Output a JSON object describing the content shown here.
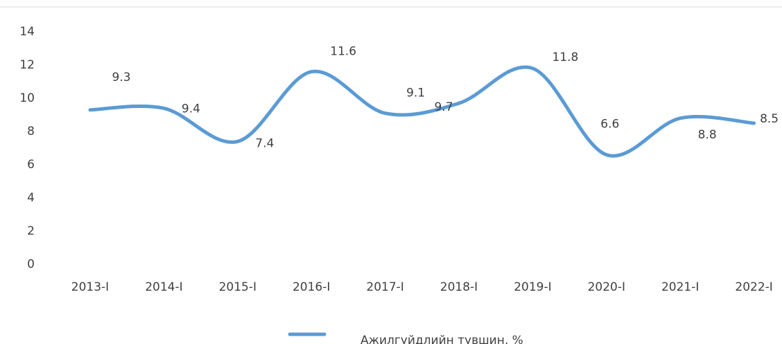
{
  "chart_data": {
    "type": "line",
    "categories": [
      "2013-I",
      "2014-I",
      "2015-I",
      "2016-I",
      "2017-I",
      "2018-I",
      "2019-I",
      "2020-I",
      "2021-I",
      "2022-I"
    ],
    "series": [
      {
        "name": "Ажилгүйдлийн түвшин, %",
        "color": "#5b9bd5",
        "values": [
          9.3,
          9.4,
          7.4,
          11.6,
          9.1,
          9.7,
          11.8,
          6.6,
          8.8,
          8.5
        ]
      }
    ],
    "ylim": [
      0,
      14
    ],
    "yticks": [
      0,
      2,
      4,
      6,
      8,
      10,
      12,
      14
    ],
    "grid": false,
    "smooth": true,
    "legend": "bottom"
  }
}
